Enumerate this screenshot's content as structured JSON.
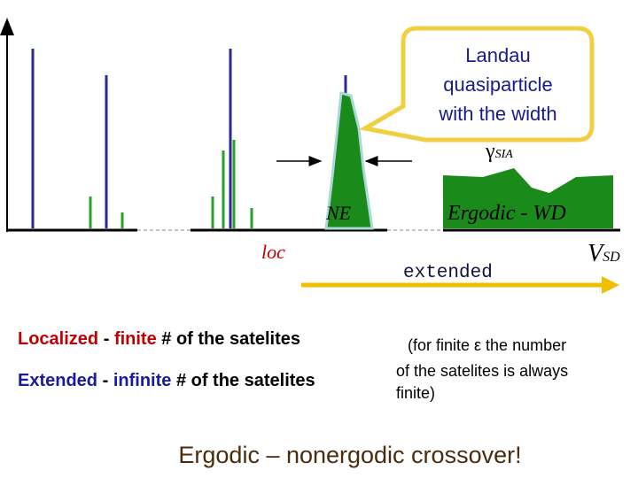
{
  "callout": {
    "lines": [
      "Landau",
      "quasiparticle",
      "with the width"
    ],
    "symbol": "γ",
    "subscript": "SIA"
  },
  "labels": {
    "ne": "NE",
    "ergodic": "Ergodic - WD",
    "loc": "loc",
    "extended": "extended",
    "v": "V",
    "v_sub": "SD"
  },
  "statements": [
    {
      "term": "Localized",
      "dash": "-",
      "quantity": "finite",
      "rest": "# of the satelites"
    },
    {
      "term": "Extended",
      "dash": "-",
      "quantity": "infinite",
      "rest": "# of the satelites"
    }
  ],
  "note": [
    "(for finite ε the number",
    "of the satelites is always",
    "finite)"
  ],
  "conclusion": "Ergodic – nonergodic crossover!"
}
